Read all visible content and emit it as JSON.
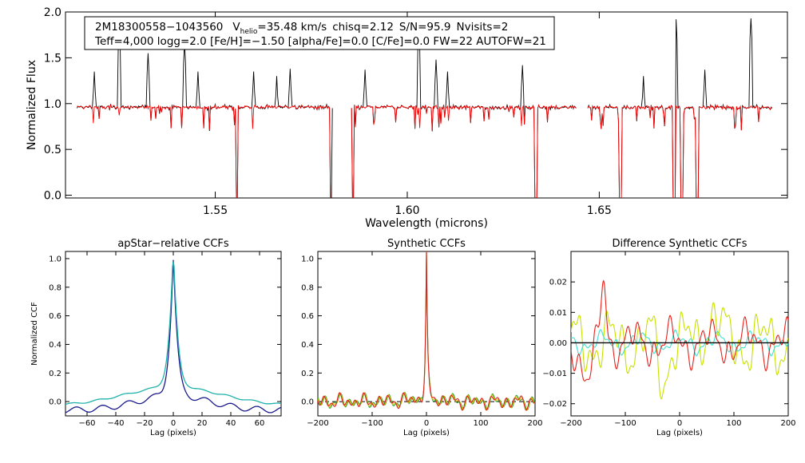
{
  "chart_data": [
    {
      "type": "line",
      "panel": "spectrum",
      "xlabel": "Wavelength (microns)",
      "ylabel": "Normalized Flux",
      "xlim": [
        1.511,
        1.699
      ],
      "ylim": [
        -0.03,
        2.0
      ],
      "xticks": [
        "1.55",
        "1.60",
        "1.65"
      ],
      "xtick_values": [
        1.55,
        1.6,
        1.65
      ],
      "yticks": [
        "0.0",
        "0.5",
        "1.0",
        "1.5",
        "2.0"
      ],
      "ytick_values": [
        0.0,
        0.5,
        1.0,
        1.5,
        2.0
      ],
      "chip_ranges": [
        [
          1.514,
          1.5805
        ],
        [
          1.5855,
          1.644
        ],
        [
          1.647,
          1.695
        ]
      ],
      "emission_spikes": [
        [
          1.5185,
          1.35
        ],
        [
          1.525,
          1.85
        ],
        [
          1.5325,
          1.55
        ],
        [
          1.542,
          1.67
        ],
        [
          1.5455,
          1.35
        ],
        [
          1.56,
          1.35
        ],
        [
          1.566,
          1.3
        ],
        [
          1.5695,
          1.38
        ],
        [
          1.589,
          1.37
        ],
        [
          1.603,
          1.83
        ],
        [
          1.6075,
          1.48
        ],
        [
          1.6105,
          1.35
        ],
        [
          1.63,
          1.42
        ],
        [
          1.6615,
          1.3
        ],
        [
          1.67,
          1.92
        ],
        [
          1.6775,
          1.37
        ],
        [
          1.6895,
          1.93
        ]
      ],
      "absorption_lines": [
        [
          1.5556,
          -0.05
        ],
        [
          1.5803,
          -0.05
        ],
        [
          1.5858,
          -0.05
        ],
        [
          1.6335,
          -0.05
        ],
        [
          1.6555,
          -0.05
        ],
        [
          1.6695,
          -0.05
        ],
        [
          1.6715,
          -0.05
        ],
        [
          1.6755,
          -0.05
        ]
      ],
      "series": [
        {
          "name": "observed",
          "color": "#000000"
        },
        {
          "name": "model",
          "color": "#ff0000"
        }
      ],
      "info_box": {
        "star": "2M18300558−1043560",
        "v_label": "V",
        "v_subscript": "helio",
        "v_value": "=35.48 km/s",
        "chisq": "chisq=2.12",
        "sn": "S/N=95.9",
        "nvisits": "Nvisits=2",
        "line2": "Teff=4,000 logg=2.0 [Fe/H]=−1.50 [alpha/Fe]=0.0 [C/Fe]=0.0 FW=22 AUTOFW=21"
      }
    },
    {
      "type": "line",
      "panel": "apstar_ccf",
      "title": "apStar−relative CCFs",
      "xlabel": "Lag (pixels)",
      "ylabel": "Normalized CCF",
      "xlim": [
        -75,
        75
      ],
      "ylim": [
        -0.1,
        1.05
      ],
      "xticks": [
        "−60",
        "−40",
        "−20",
        "0",
        "20",
        "40",
        "60"
      ],
      "xtick_values": [
        -60,
        -40,
        -20,
        0,
        20,
        40,
        60
      ],
      "yticks": [
        "0.0",
        "0.2",
        "0.4",
        "0.6",
        "0.8",
        "1.0"
      ],
      "ytick_values": [
        0.0,
        0.2,
        0.4,
        0.6,
        0.8,
        1.0
      ],
      "series": [
        {
          "name": "ccf-1",
          "color": "#1a1a8c",
          "peak": 0.99,
          "width": 2.6,
          "wing": 0.1,
          "wing_width": 25,
          "base": -0.06
        },
        {
          "name": "ccf-2",
          "color": "#20b2aa",
          "peak": 0.98,
          "width": 2.8,
          "wing": 0.13,
          "wing_width": 34,
          "base": -0.03
        }
      ]
    },
    {
      "type": "line",
      "panel": "synthetic_ccf",
      "title": "Synthetic CCFs",
      "xlabel": "Lag (pixels)",
      "ylabel": "",
      "xlim": [
        -200,
        200
      ],
      "ylim": [
        -0.1,
        1.05
      ],
      "xticks": [
        "−200",
        "−100",
        "0",
        "100",
        "200"
      ],
      "xtick_values": [
        -200,
        -100,
        0,
        100,
        200
      ],
      "yticks": [
        "0.0",
        "0.2",
        "0.4",
        "0.6",
        "0.8",
        "1.0"
      ],
      "ytick_values": [
        0.0,
        0.2,
        0.4,
        0.6,
        0.8,
        1.0
      ],
      "zero_line": "dashed",
      "series": [
        {
          "name": "synthetic-1",
          "color": "#2ca02c"
        },
        {
          "name": "synthetic-2",
          "color": "#d4c400"
        },
        {
          "name": "synthetic-3",
          "color": "#d62728"
        }
      ]
    },
    {
      "type": "line",
      "panel": "difference_ccf",
      "title": "Difference Synthetic CCFs",
      "xlabel": "Lag (pixels)",
      "ylabel": "",
      "xlim": [
        -200,
        200
      ],
      "ylim": [
        -0.024,
        0.03
      ],
      "xticks": [
        "−200",
        "−100",
        "0",
        "100",
        "200"
      ],
      "xtick_values": [
        -200,
        -100,
        0,
        100,
        200
      ],
      "yticks": [
        "−0.02",
        "−0.01",
        "0.00",
        "0.01",
        "0.02"
      ],
      "ytick_values": [
        -0.02,
        -0.01,
        0.0,
        0.01,
        0.02
      ],
      "zero_line": "solid",
      "series": [
        {
          "name": "diff-yellow",
          "color": "#c8e000",
          "amplitude": 0.012
        },
        {
          "name": "diff-cyan",
          "color": "#40e0d0",
          "amplitude": 0.004
        },
        {
          "name": "diff-red",
          "color": "#e8201a",
          "amplitude": 0.008
        }
      ]
    }
  ]
}
